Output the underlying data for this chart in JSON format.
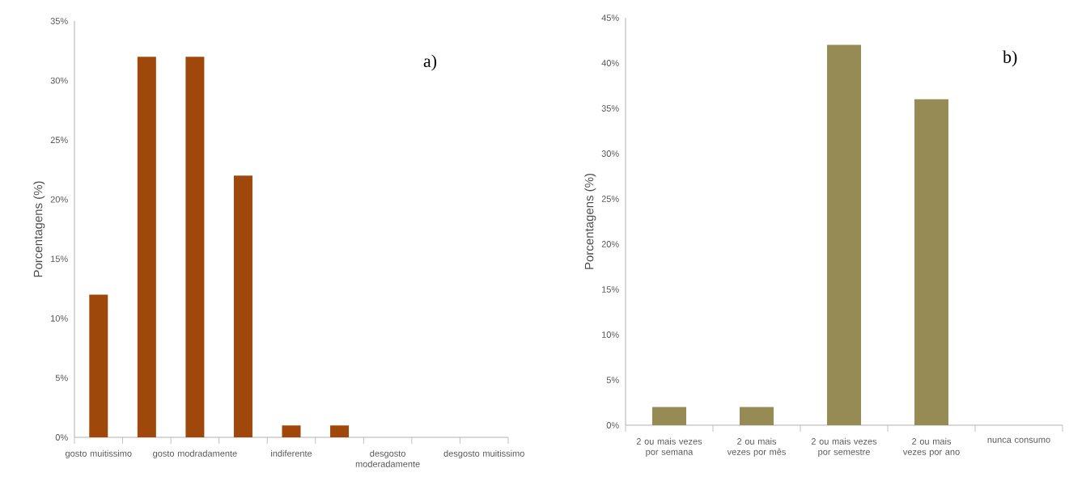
{
  "chart_data": [
    {
      "type": "bar",
      "categories": [
        "gosto muitissimo",
        null,
        "gosto modradamente",
        null,
        "indiferente",
        null,
        "desgosto moderadamente",
        null,
        "desgosto muitissimo"
      ],
      "values": [
        12,
        32,
        32,
        22,
        1,
        1,
        0,
        0,
        0
      ],
      "color": "#a0480c",
      "ylabel": "Porcentagens (%)",
      "ylim": [
        0,
        35
      ],
      "yticks": [
        {
          "value": 0,
          "label": "0%"
        },
        {
          "value": 5,
          "label": "5%"
        },
        {
          "value": 10,
          "label": "10%"
        },
        {
          "value": 15,
          "label": "15%"
        },
        {
          "value": 20,
          "label": "20%"
        },
        {
          "value": 25,
          "label": "25%"
        },
        {
          "value": 30,
          "label": "30%"
        },
        {
          "value": 35,
          "label": "35%"
        }
      ],
      "annotations": [
        "a)"
      ]
    },
    {
      "type": "bar",
      "categories": [
        "2 ou mais vezes por semana",
        "2 ou mais vezes por mês",
        "2 ou mais vezes por semestre",
        "2 ou mais vezes por ano",
        "nunca consumo"
      ],
      "values": [
        2,
        2,
        42,
        36,
        0
      ],
      "color": "#968a55",
      "ylabel": "Porcentagens (%)",
      "ylim": [
        0,
        45
      ],
      "yticks": [
        {
          "value": 0,
          "label": "0%"
        },
        {
          "value": 5,
          "label": "5%"
        },
        {
          "value": 10,
          "label": "10%"
        },
        {
          "value": 15,
          "label": "15%"
        },
        {
          "value": 20,
          "label": "20%"
        },
        {
          "value": 25,
          "label": "25%"
        },
        {
          "value": 30,
          "label": "30%"
        },
        {
          "value": 35,
          "label": "35%"
        },
        {
          "value": 40,
          "label": "40%"
        },
        {
          "value": 45,
          "label": "45%"
        }
      ],
      "annotations": [
        "b)"
      ]
    }
  ]
}
